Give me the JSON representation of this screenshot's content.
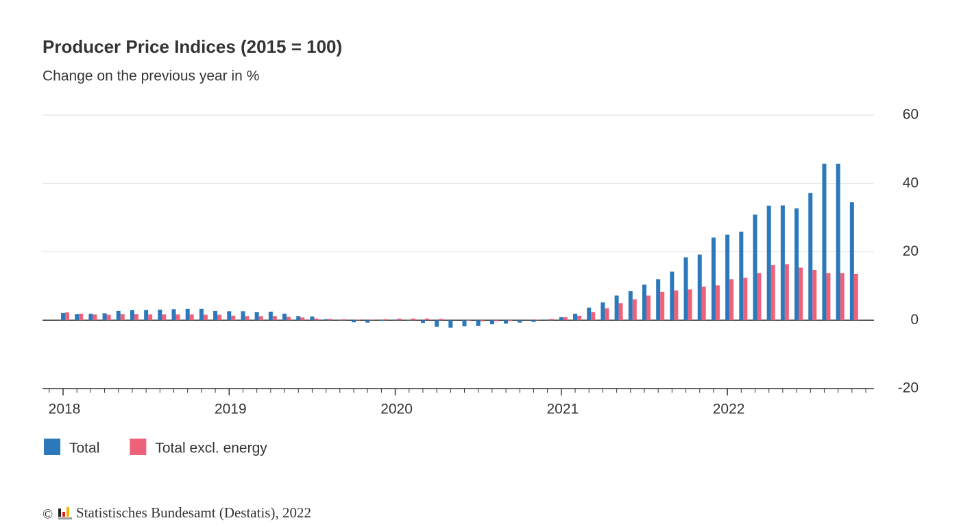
{
  "chart_data": {
    "type": "bar",
    "title": "Producer Price Indices (2015 = 100)",
    "subtitle": "Change on the previous year in %",
    "categories": [
      "2018",
      null,
      null,
      null,
      null,
      null,
      null,
      null,
      null,
      null,
      null,
      null,
      "2019",
      null,
      null,
      null,
      null,
      null,
      null,
      null,
      null,
      null,
      null,
      null,
      "2020",
      null,
      null,
      null,
      null,
      null,
      null,
      null,
      null,
      null,
      null,
      null,
      "2021",
      null,
      null,
      null,
      null,
      null,
      null,
      null,
      null,
      null,
      null,
      null,
      "2022",
      null,
      null,
      null,
      null,
      null,
      null,
      null,
      null,
      null
    ],
    "series": [
      {
        "name": "Total",
        "color": "#2b78bb",
        "values": [
          2.1,
          1.8,
          1.9,
          2.0,
          2.7,
          3.0,
          3.0,
          3.1,
          3.2,
          3.3,
          3.3,
          2.7,
          2.6,
          2.6,
          2.4,
          2.5,
          1.9,
          1.2,
          1.1,
          0.3,
          -0.1,
          -0.6,
          -0.7,
          -0.2,
          0.2,
          -0.1,
          -0.8,
          -1.9,
          -2.2,
          -1.8,
          -1.7,
          -1.2,
          -1.0,
          -0.7,
          -0.5,
          0.2,
          0.9,
          1.9,
          3.7,
          5.2,
          7.2,
          8.5,
          10.4,
          12.0,
          14.2,
          18.4,
          19.2,
          24.2,
          25.0,
          25.9,
          30.9,
          33.5,
          33.6,
          32.7,
          37.2,
          45.8,
          45.8,
          34.5
        ]
      },
      {
        "name": "Total excl. energy",
        "color": "#ee6279",
        "values": [
          2.3,
          1.9,
          1.7,
          1.6,
          1.8,
          1.8,
          1.7,
          1.7,
          1.7,
          1.7,
          1.6,
          1.6,
          1.3,
          1.2,
          1.2,
          1.2,
          1.0,
          0.8,
          0.5,
          0.4,
          0.3,
          0.2,
          0.2,
          0.3,
          0.5,
          0.5,
          0.5,
          0.4,
          0.0,
          -0.2,
          -0.3,
          -0.3,
          -0.2,
          0.0,
          0.2,
          0.4,
          0.9,
          1.3,
          2.4,
          3.5,
          5.0,
          6.1,
          7.2,
          8.3,
          8.7,
          9.0,
          9.8,
          10.2,
          12.0,
          12.4,
          13.8,
          16.1,
          16.4,
          15.4,
          14.7,
          13.8,
          13.8,
          13.5
        ]
      }
    ],
    "ylim": [
      -20,
      60
    ],
    "yticks": [
      -20,
      0,
      20,
      40,
      60
    ],
    "grid": true,
    "copyright": "©",
    "source": "Statistisches Bundesamt (Destatis), 2022"
  }
}
